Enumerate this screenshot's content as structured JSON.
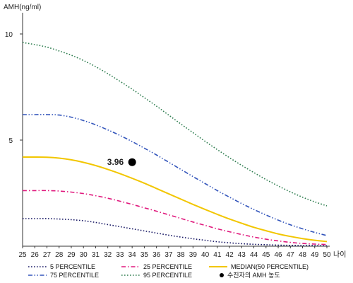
{
  "chart_data": {
    "type": "line",
    "ylabel": "AMH(ng/ml)",
    "xlabel": "나이",
    "xlim": [
      25,
      50
    ],
    "ylim": [
      0,
      11
    ],
    "x_ticks": [
      25,
      26,
      27,
      28,
      29,
      30,
      31,
      32,
      33,
      34,
      35,
      36,
      37,
      38,
      39,
      40,
      41,
      42,
      43,
      44,
      45,
      46,
      47,
      48,
      49,
      50
    ],
    "y_ticks": [
      5,
      10
    ],
    "x": [
      25,
      26,
      27,
      28,
      29,
      30,
      31,
      32,
      33,
      34,
      35,
      36,
      37,
      38,
      39,
      40,
      41,
      42,
      43,
      44,
      45,
      46,
      47,
      48,
      49,
      50
    ],
    "series": [
      {
        "name": "5 PERCENTILE",
        "color": "#1a1a66",
        "dash": "dotted",
        "values": [
          1.3,
          1.3,
          1.3,
          1.28,
          1.25,
          1.2,
          1.12,
          1.02,
          0.92,
          0.82,
          0.72,
          0.62,
          0.52,
          0.43,
          0.35,
          0.28,
          0.21,
          0.16,
          0.12,
          0.09,
          0.07,
          0.05,
          0.04,
          0.03,
          0.03,
          0.02
        ]
      },
      {
        "name": "25 PERCENTILE",
        "color": "#e0197d",
        "dash": "dashdot",
        "values": [
          2.62,
          2.62,
          2.62,
          2.6,
          2.55,
          2.48,
          2.38,
          2.26,
          2.12,
          1.97,
          1.81,
          1.65,
          1.48,
          1.31,
          1.14,
          0.98,
          0.82,
          0.68,
          0.55,
          0.43,
          0.33,
          0.25,
          0.18,
          0.13,
          0.1,
          0.08
        ]
      },
      {
        "name": "MEDIAN(50 PERCENTILE)",
        "color": "#f2c600",
        "dash": "solid",
        "values": [
          4.2,
          4.2,
          4.19,
          4.15,
          4.07,
          3.95,
          3.8,
          3.62,
          3.42,
          3.2,
          2.97,
          2.72,
          2.47,
          2.22,
          1.97,
          1.73,
          1.5,
          1.28,
          1.08,
          0.89,
          0.73,
          0.58,
          0.46,
          0.36,
          0.28,
          0.22
        ]
      },
      {
        "name": "75 PERCENTILE",
        "color": "#3355bb",
        "dash": "dashdotdot",
        "values": [
          6.2,
          6.2,
          6.2,
          6.18,
          6.08,
          5.92,
          5.72,
          5.48,
          5.22,
          4.93,
          4.62,
          4.3,
          3.96,
          3.62,
          3.28,
          2.95,
          2.62,
          2.31,
          2.01,
          1.73,
          1.47,
          1.23,
          1.01,
          0.82,
          0.65,
          0.5
        ]
      },
      {
        "name": "95 PERCENTILE",
        "color": "#2e7d4f",
        "dash": "dotted",
        "values": [
          9.6,
          9.5,
          9.38,
          9.2,
          9.0,
          8.75,
          8.46,
          8.13,
          7.77,
          7.4,
          7.0,
          6.6,
          6.18,
          5.76,
          5.35,
          4.94,
          4.55,
          4.17,
          3.81,
          3.47,
          3.14,
          2.84,
          2.56,
          2.31,
          2.09,
          1.9
        ]
      }
    ],
    "marker": {
      "name": "수진자의 AMH 농도",
      "x": 34,
      "y": 3.96,
      "label": "3.96",
      "color": "#000000"
    },
    "legend_position": "bottom",
    "grid": false
  }
}
